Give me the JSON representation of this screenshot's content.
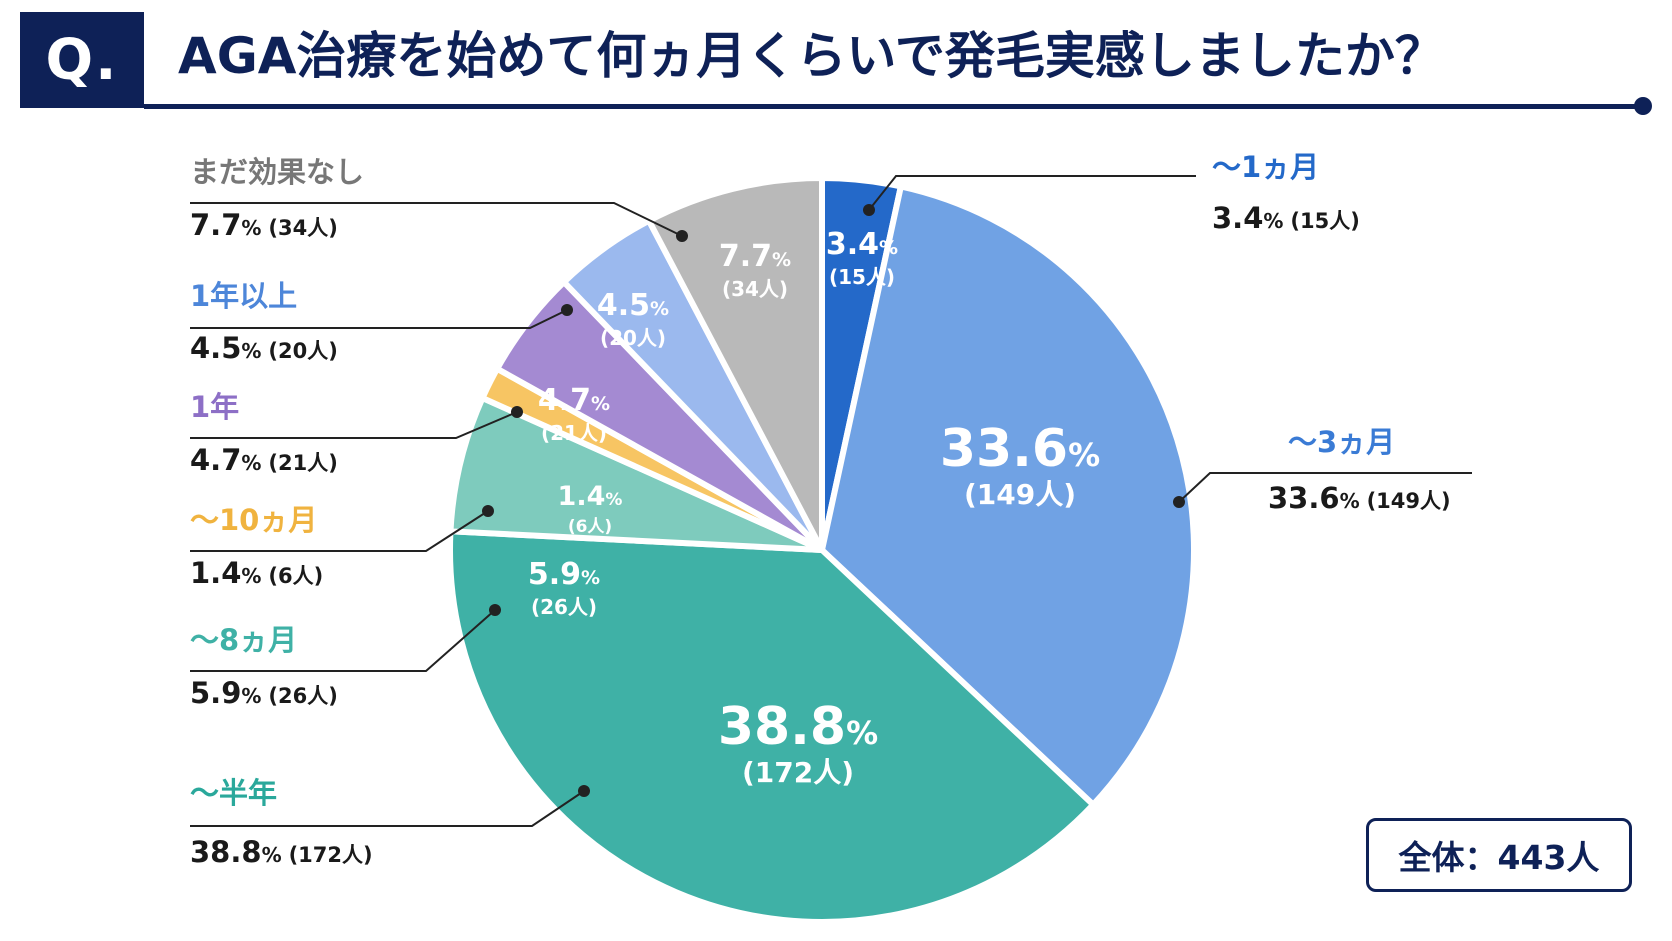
{
  "header": {
    "badge": "Q.",
    "title": "AGA治療を始めて何ヵ月くらいで発毛実感しましたか？"
  },
  "total": {
    "label": "全体",
    "separator": "：",
    "value": "443人"
  },
  "chart_data": {
    "type": "pie",
    "start": "12 o'clock",
    "direction": "clockwise",
    "total": 443,
    "slices": [
      {
        "key": "m1",
        "label": "～1ヵ月",
        "percent": 3.4,
        "count": 15,
        "count_text": "(15人)",
        "color": "#2469c9",
        "label_color": "#2469c9"
      },
      {
        "key": "m3",
        "label": "～3ヵ月",
        "percent": 33.6,
        "count": 149,
        "count_text": "(149人)",
        "color": "#70a2e4",
        "label_color": "#3a7bd5"
      },
      {
        "key": "half",
        "label": "～半年",
        "percent": 38.8,
        "count": 172,
        "count_text": "(172人)",
        "color": "#3fb1a6",
        "label_color": "#2aa89b"
      },
      {
        "key": "m8",
        "label": "～8ヵ月",
        "percent": 5.9,
        "count": 26,
        "count_text": "(26人)",
        "color": "#7ecbbd",
        "label_color": "#3fb1a6"
      },
      {
        "key": "m10",
        "label": "～10ヵ月",
        "percent": 1.4,
        "count": 6,
        "count_text": "(6人)",
        "color": "#f7c563",
        "label_color": "#f0b33f"
      },
      {
        "key": "y1",
        "label": "1年",
        "percent": 4.7,
        "count": 21,
        "count_text": "(21人)",
        "color": "#a48ad2",
        "label_color": "#8d6fc6"
      },
      {
        "key": "y1p",
        "label": "1年以上",
        "percent": 4.5,
        "count": 20,
        "count_text": "(20人)",
        "color": "#9bb9ee",
        "label_color": "#4d86d9"
      },
      {
        "key": "none",
        "label": "まだ効果なし",
        "percent": 7.7,
        "count": 34,
        "count_text": "(34人)",
        "color": "#b9b9b9",
        "label_color": "#777777"
      }
    ],
    "percent_sign": "%"
  }
}
